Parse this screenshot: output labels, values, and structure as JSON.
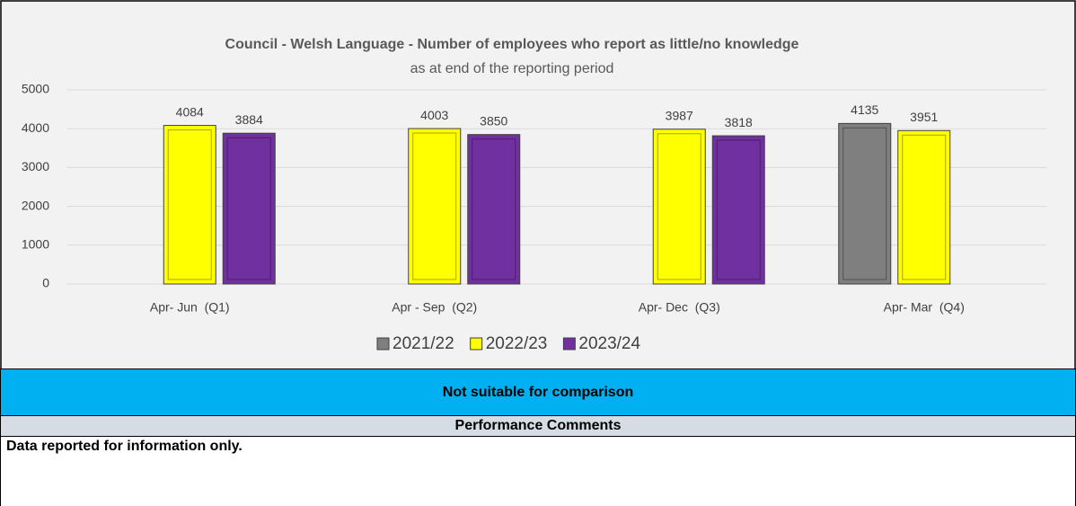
{
  "chart_data": {
    "type": "bar",
    "title": "Council - Welsh Language - Number of employees who report as little/no knowledge",
    "subtitle": "as at end of the reporting period",
    "categories": [
      "Apr- Jun  (Q1)",
      "Apr - Sep  (Q2)",
      "Apr- Dec  (Q3)",
      "Apr- Mar  (Q4)"
    ],
    "series": [
      {
        "name": "2021/22",
        "color": "#7f7f7f",
        "values": [
          null,
          null,
          null,
          4135
        ]
      },
      {
        "name": "2022/23",
        "color": "#ffff00",
        "values": [
          4084,
          4003,
          3987,
          3951
        ]
      },
      {
        "name": "2023/24",
        "color": "#7030a0",
        "values": [
          3884,
          3850,
          3818,
          null
        ]
      }
    ],
    "ylim": [
      0,
      5000
    ],
    "yticks": [
      0,
      1000,
      2000,
      3000,
      4000,
      5000
    ],
    "grid": true,
    "legend": "bottom"
  },
  "banner": "Not suitable for comparison",
  "comments_header": "Performance Comments",
  "comments": "Data reported for information only."
}
